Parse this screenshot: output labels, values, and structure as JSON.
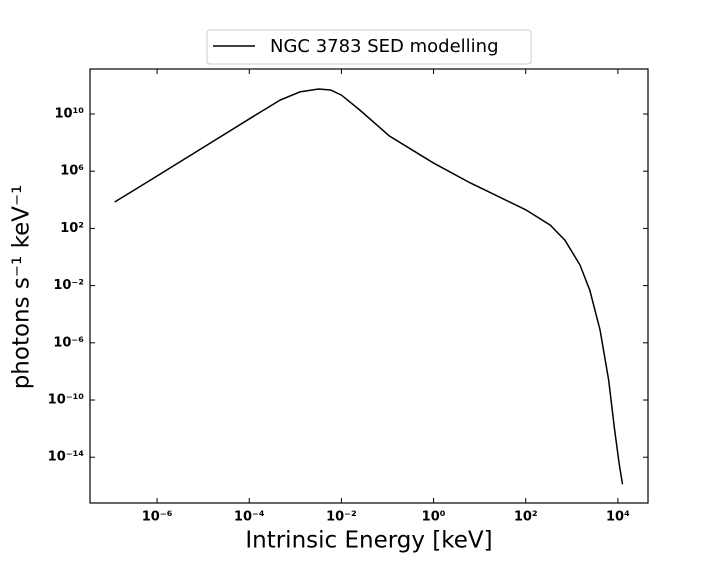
{
  "chart_data": {
    "type": "line",
    "xlabel": "Intrinsic Energy [keV]",
    "ylabel": "photons s⁻¹ keV⁻¹",
    "xscale": "log",
    "yscale": "log",
    "legend": "upper center",
    "x": [
      1.2e-07,
      1e-06,
      0.0001,
      0.00047,
      0.00126,
      0.0032,
      0.0058,
      0.01,
      0.025,
      0.11,
      1,
      6.3,
      100,
      340,
      710,
      1500,
      2450,
      4100,
      6300,
      8500,
      10700,
      12600
    ],
    "series": [
      {
        "name": "NGC 3783 SED modelling",
        "color": "#000000",
        "values": [
          7000.0,
          460000.0,
          4500000000.0,
          95000000000.0,
          350000000000.0,
          560000000000.0,
          480000000000.0,
          210000000000.0,
          19000000000.0,
          290000000.0,
          3700000.0,
          150000.0,
          2000.0,
          170,
          15,
          0.28,
          0.0049,
          7.9e-06,
          2.5e-09,
          7.9e-13,
          3.2e-15,
          1.3e-16
        ]
      }
    ],
    "xlim": [
      3.5e-08,
      45000.0
    ],
    "ylim": [
      6.3e-18,
      14000000000000.0
    ],
    "xticks": [
      {
        "value": 1e-06,
        "label": "10⁻⁶"
      },
      {
        "value": 0.0001,
        "label": "10⁻⁴"
      },
      {
        "value": 0.01,
        "label": "10⁻²"
      },
      {
        "value": 1,
        "label": "10⁰"
      },
      {
        "value": 100,
        "label": "10²"
      },
      {
        "value": 10000.0,
        "label": "10⁴"
      }
    ],
    "yticks": [
      {
        "value": 1e-14,
        "label": "10⁻¹⁴"
      },
      {
        "value": 1e-10,
        "label": "10⁻¹⁰"
      },
      {
        "value": 1e-06,
        "label": "10⁻⁶"
      },
      {
        "value": 0.01,
        "label": "10⁻²"
      },
      {
        "value": 100,
        "label": "10²"
      },
      {
        "value": 1000000.0,
        "label": "10⁶"
      },
      {
        "value": 10000000000.0,
        "label": "10¹⁰"
      }
    ]
  }
}
